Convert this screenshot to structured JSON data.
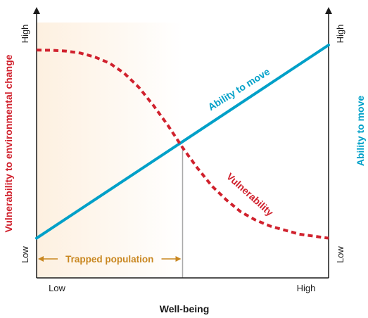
{
  "colors": {
    "vulnerability": "#d0212d",
    "ability": "#00a0c8",
    "trapped": "#c98720",
    "trapped_fill_start": "#fdf0e0",
    "trapped_fill_end": "#ffffff",
    "divider": "#a9a9a9",
    "axis": "#1a1a1a"
  },
  "chart_data": {
    "type": "line",
    "title": "",
    "xlabel": "Well-being",
    "ylabel_left": "Vulnerability to environmental change",
    "ylabel_right": "Ability to move",
    "x_ticks": [
      "Low",
      "High"
    ],
    "y_left_ticks": [
      "Low",
      "High"
    ],
    "y_right_ticks": [
      "Low",
      "High"
    ],
    "xlim": [
      0,
      1
    ],
    "ylim": [
      0,
      1
    ],
    "grid": false,
    "series": [
      {
        "name": "Vulnerability",
        "style": "dashed",
        "x": [
          0.0,
          0.05,
          0.1,
          0.15,
          0.2,
          0.25,
          0.3,
          0.35,
          0.4,
          0.45,
          0.5,
          0.55,
          0.6,
          0.65,
          0.7,
          0.75,
          0.8,
          0.85,
          0.9,
          0.95,
          1.0
        ],
        "values": [
          0.975,
          0.974,
          0.97,
          0.96,
          0.94,
          0.91,
          0.86,
          0.79,
          0.7,
          0.6,
          0.49,
          0.39,
          0.3,
          0.23,
          0.17,
          0.13,
          0.1,
          0.08,
          0.06,
          0.05,
          0.04
        ]
      },
      {
        "name": "Ability to move",
        "style": "solid",
        "x": [
          0.0,
          1.0
        ],
        "values": [
          0.04,
          1.0
        ]
      }
    ],
    "annotations": {
      "trapped_population": {
        "label": "Trapped population",
        "x_start": 0.0,
        "x_end": 0.5
      },
      "crossover_x": 0.5
    }
  }
}
